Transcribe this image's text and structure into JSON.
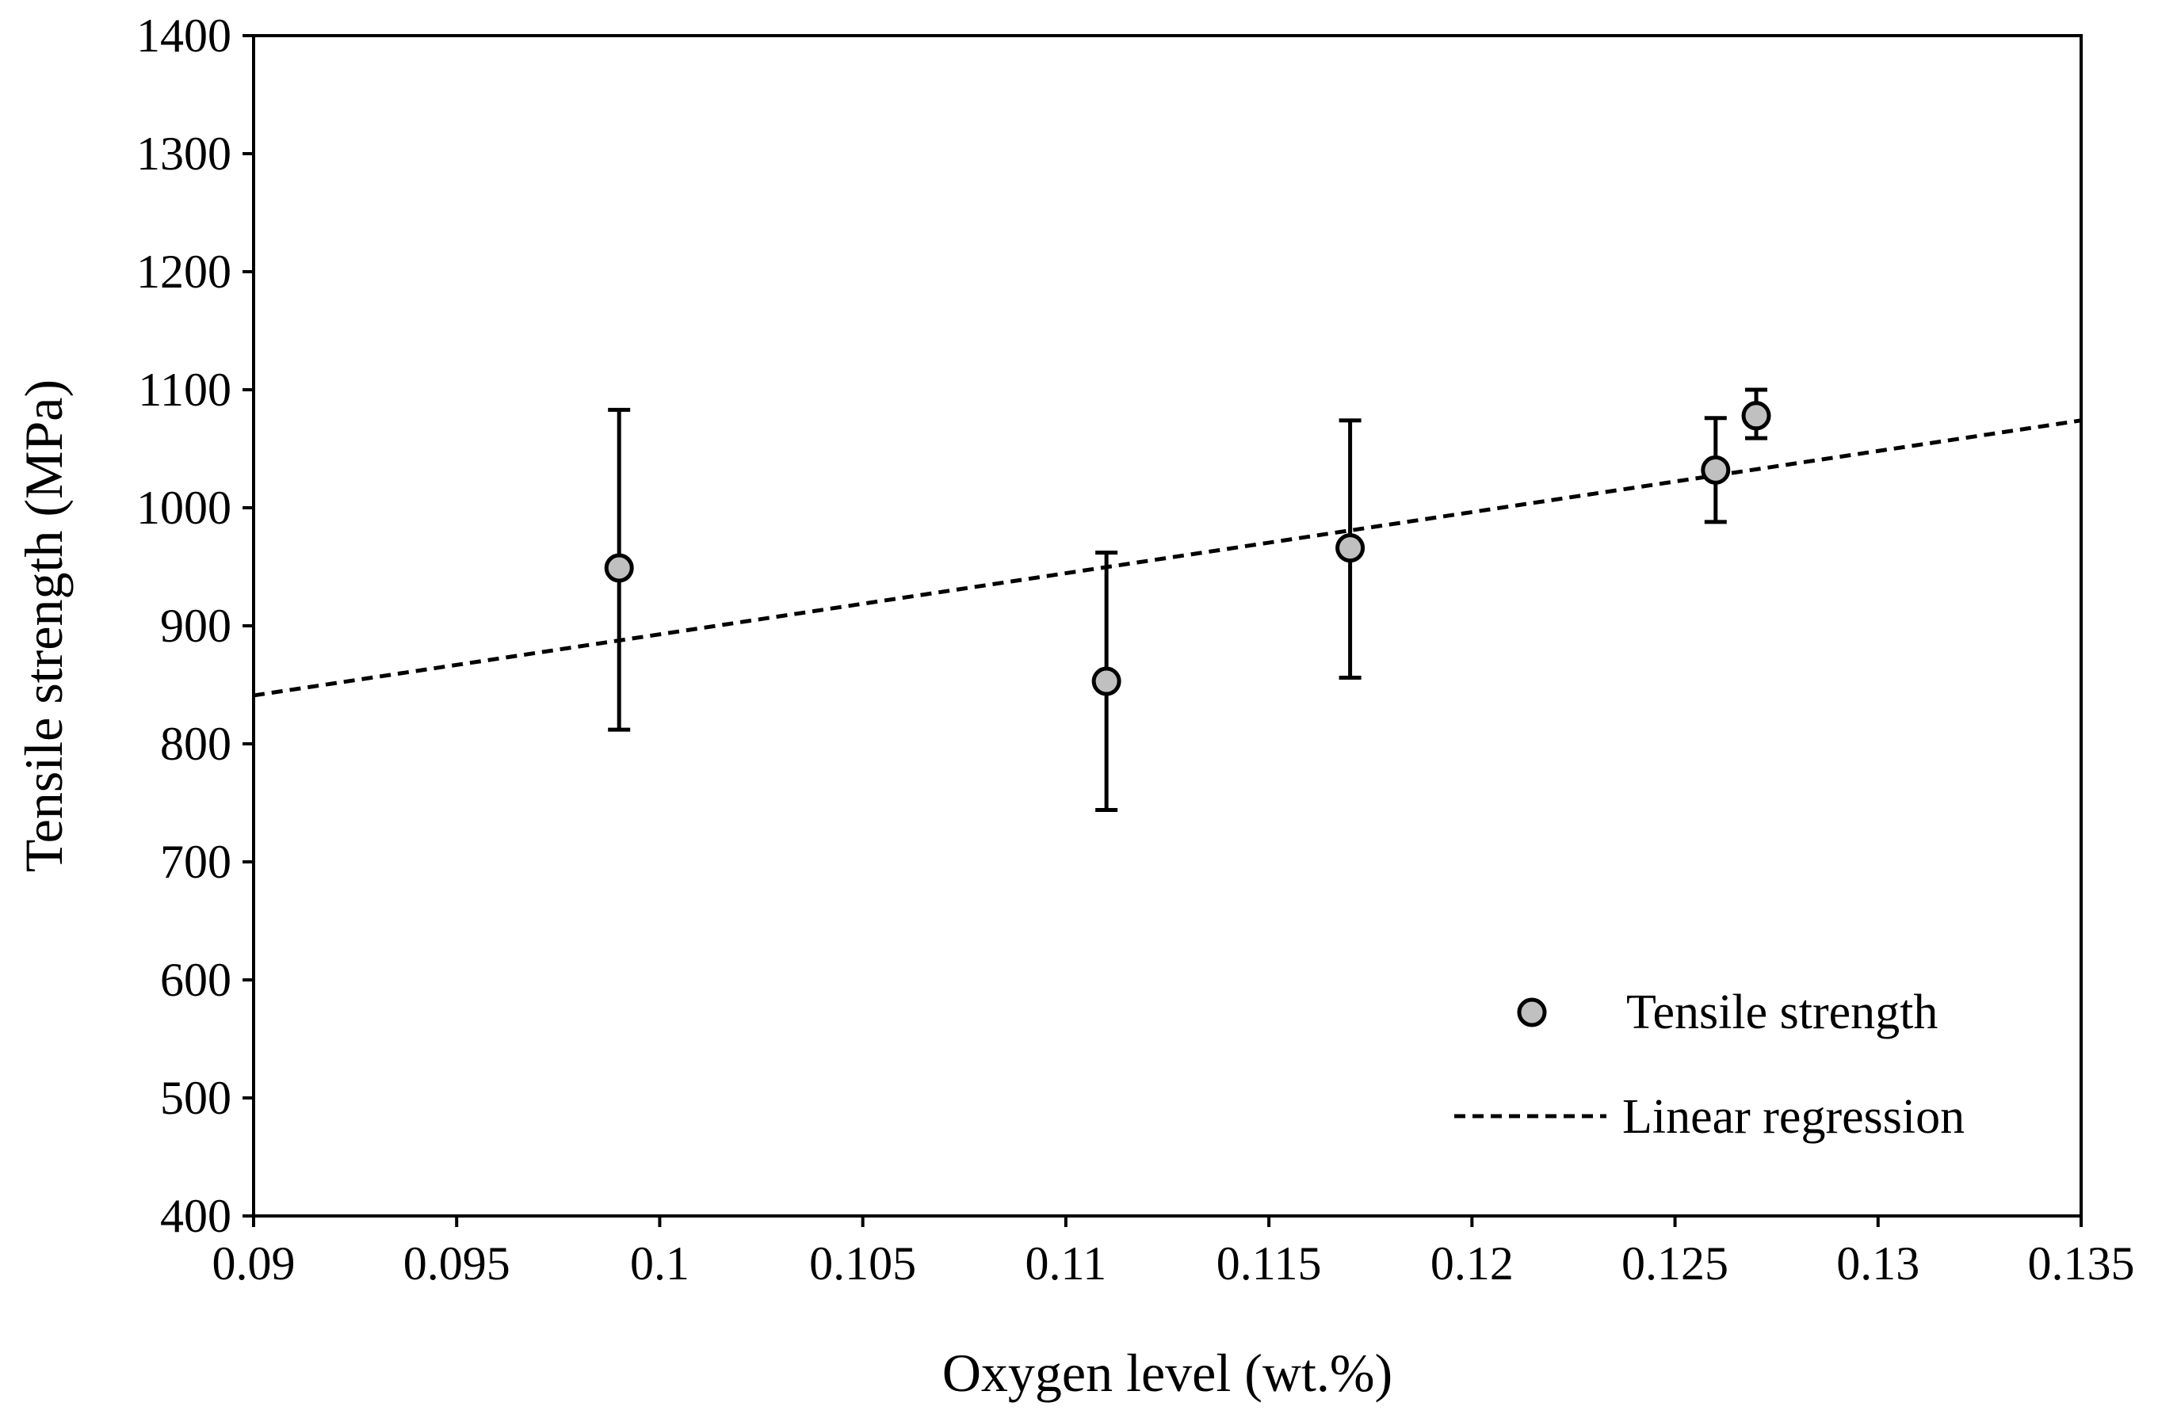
{
  "chart_data": {
    "type": "scatter",
    "xlabel": "Oxygen level (wt.%)",
    "ylabel": "Tensile strength (MPa)",
    "xlim": [
      0.09,
      0.135
    ],
    "ylim": [
      400,
      1400
    ],
    "x_ticks": [
      "0.09",
      "0.095",
      "0.1",
      "0.105",
      "0.11",
      "0.115",
      "0.12",
      "0.125",
      "0.13",
      "0.135"
    ],
    "y_ticks": [
      "400",
      "500",
      "600",
      "700",
      "800",
      "900",
      "1000",
      "1100",
      "1200",
      "1300",
      "1400"
    ],
    "grid": false,
    "legend_position": "bottom-right",
    "series": [
      {
        "name": "Tensile strength",
        "kind": "points-with-error-bars",
        "marker_fill": "#c0c0c0",
        "points": [
          {
            "x": 0.099,
            "y": 949,
            "err_low": 812,
            "err_high": 1083
          },
          {
            "x": 0.111,
            "y": 853,
            "err_low": 744,
            "err_high": 962
          },
          {
            "x": 0.117,
            "y": 966,
            "err_low": 856,
            "err_high": 1074
          },
          {
            "x": 0.126,
            "y": 1032,
            "err_low": 988,
            "err_high": 1076
          },
          {
            "x": 0.127,
            "y": 1078,
            "err_low": 1059,
            "err_high": 1100
          }
        ]
      },
      {
        "name": "Linear regression",
        "kind": "dashed-line",
        "x": [
          0.09,
          0.135
        ],
        "y": [
          841,
          1074
        ]
      }
    ]
  }
}
